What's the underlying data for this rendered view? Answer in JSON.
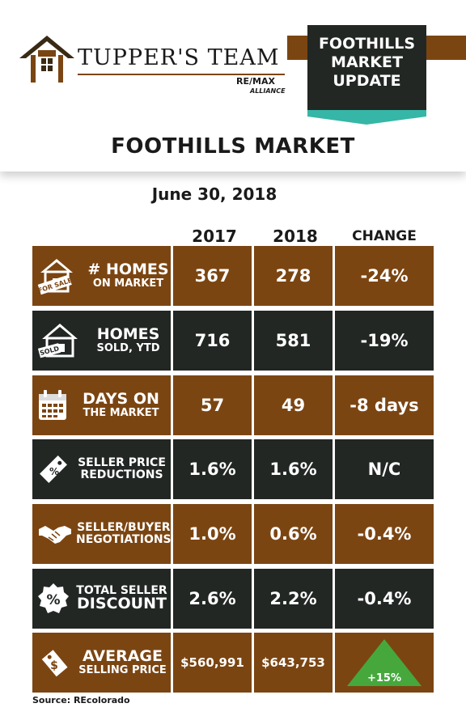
{
  "brand": {
    "name": "TUPPER'S TEAM",
    "remax": "RE/MAX",
    "alliance": "ALLIANCE"
  },
  "badge": {
    "line1": "FOOTHILLS",
    "line2": "MARKET",
    "line3": "UPDATE"
  },
  "title": "FOOTHILLS MARKET",
  "date": "June 30, 2018",
  "columns": {
    "y1": "2017",
    "y2": "2018",
    "change": "CHANGE"
  },
  "rows": [
    {
      "label_big": "# HOMES",
      "label_small": "ON MARKET",
      "y2017": "367",
      "y2018": "278",
      "change": "-24%",
      "icon": "for-sale-house-icon",
      "sign": "FOR SALE"
    },
    {
      "label_big": "HOMES",
      "label_small": "SOLD, YTD",
      "y2017": "716",
      "y2018": "581",
      "change": "-19%",
      "icon": "sold-house-icon",
      "sign": "SOLD"
    },
    {
      "label_big": "DAYS ON",
      "label_small": "THE MARKET",
      "y2017": "57",
      "y2018": "49",
      "change": "-8 days",
      "icon": "calendar-icon"
    },
    {
      "label_line1": "SELLER PRICE",
      "label_line2": "REDUCTIONS",
      "y2017": "1.6%",
      "y2018": "1.6%",
      "change": "N/C",
      "icon": "price-tag-percent-icon"
    },
    {
      "label_line1": "SELLER/BUYER",
      "label_line2": "NEGOTIATIONS",
      "y2017": "1.0%",
      "y2018": "0.6%",
      "change": "-0.4%",
      "icon": "handshake-icon"
    },
    {
      "label_line1": "TOTAL SELLER",
      "label_line2": "DISCOUNT",
      "y2017": "2.6%",
      "y2018": "2.2%",
      "change": "-0.4%",
      "icon": "discount-badge-icon"
    },
    {
      "label_big": "AVERAGE",
      "label_small": "SELLING PRICE",
      "y2017": "$560,991",
      "y2018": "$643,753",
      "change": "+15%",
      "icon": "dollar-tag-icon"
    }
  ],
  "colors": {
    "brown": "#7b4512",
    "dark": "#222724",
    "teal": "#36b6a6",
    "green": "#46a83c"
  },
  "source": "Source: REcolorado"
}
